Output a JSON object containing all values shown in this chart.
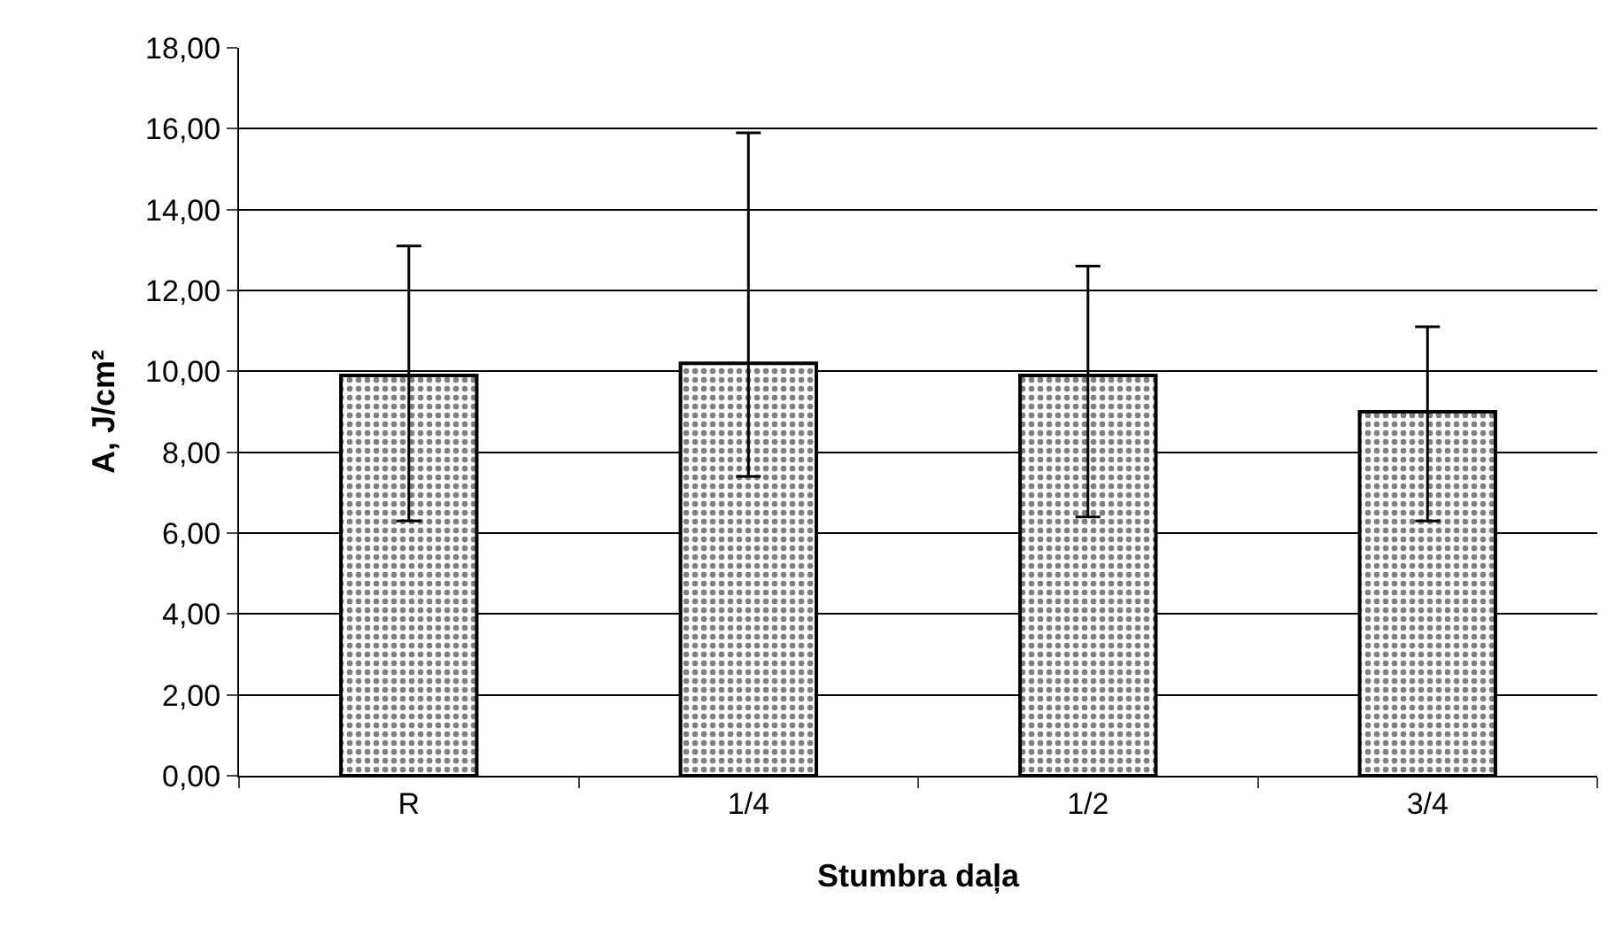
{
  "chart_data": {
    "type": "bar",
    "xlabel": "Stumbra daļa",
    "ylabel": "A, J/cm²",
    "categories": [
      "R",
      "1/4",
      "1/2",
      "3/4"
    ],
    "values": [
      9.9,
      10.2,
      9.9,
      9.0
    ],
    "errors": [
      [
        6.3,
        13.1
      ],
      [
        7.4,
        15.9
      ],
      [
        6.4,
        12.6
      ],
      [
        6.3,
        11.1
      ]
    ],
    "color": "#000000",
    "ylim": [
      0,
      18
    ],
    "yticks": [
      {
        "value": 0,
        "label": "0,00"
      },
      {
        "value": 2,
        "label": "2,00"
      },
      {
        "value": 4,
        "label": "4,00"
      },
      {
        "value": 6,
        "label": "6,00"
      },
      {
        "value": 8,
        "label": "8,00"
      },
      {
        "value": 10,
        "label": "10,00"
      },
      {
        "value": 12,
        "label": "12,00"
      },
      {
        "value": 14,
        "label": "14,00"
      },
      {
        "value": 16,
        "label": "16,00"
      },
      {
        "value": 18,
        "label": "18,00"
      }
    ],
    "grid": "y",
    "legend": false
  }
}
